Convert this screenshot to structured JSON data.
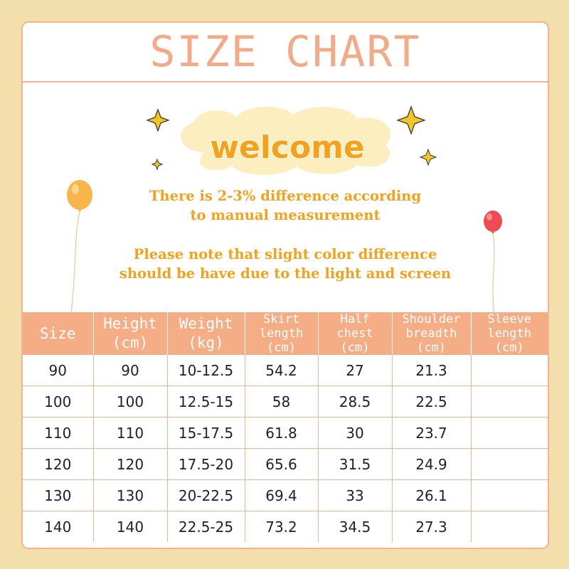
{
  "title": "SIZE CHART",
  "welcome": "welcome",
  "note1": [
    "There is 2-3% difference according",
    "to manual measurement"
  ],
  "note2": [
    "Please note that slight color difference",
    "should be have due to the light and screen"
  ],
  "table": {
    "headers": [
      {
        "lines": [
          "Size"
        ]
      },
      {
        "lines": [
          "Height",
          "(cm)"
        ]
      },
      {
        "lines": [
          "Weight",
          "(kg)"
        ]
      },
      {
        "lines": [
          "Skirt",
          "length",
          "(cm)"
        ]
      },
      {
        "lines": [
          "Half",
          "chest",
          "(cm)"
        ]
      },
      {
        "lines": [
          "Shoulder",
          "breadth",
          "(cm)"
        ]
      },
      {
        "lines": [
          "Sleeve",
          "length",
          "(cm)"
        ]
      }
    ],
    "rows": [
      [
        "90",
        "90",
        "10-12.5",
        "54.2",
        "27",
        "21.3",
        ""
      ],
      [
        "100",
        "100",
        "12.5-15",
        "58",
        "28.5",
        "22.5",
        ""
      ],
      [
        "110",
        "110",
        "15-17.5",
        "61.8",
        "30",
        "23.7",
        ""
      ],
      [
        "120",
        "120",
        "17.5-20",
        "65.6",
        "31.5",
        "24.9",
        ""
      ],
      [
        "130",
        "130",
        "20-22.5",
        "69.4",
        "33",
        "26.1",
        ""
      ],
      [
        "140",
        "140",
        "22.5-25",
        "73.2",
        "34.5",
        "27.3",
        ""
      ]
    ]
  },
  "colors": {
    "page_bg": "#f3dfab",
    "accent": "#f5ad85",
    "welcome_text": "#f6a11a",
    "cloud": "#fdeec0",
    "star": "#f3c623",
    "balloon_left": "#f9b54a",
    "balloon_right": "#ef4c52"
  }
}
